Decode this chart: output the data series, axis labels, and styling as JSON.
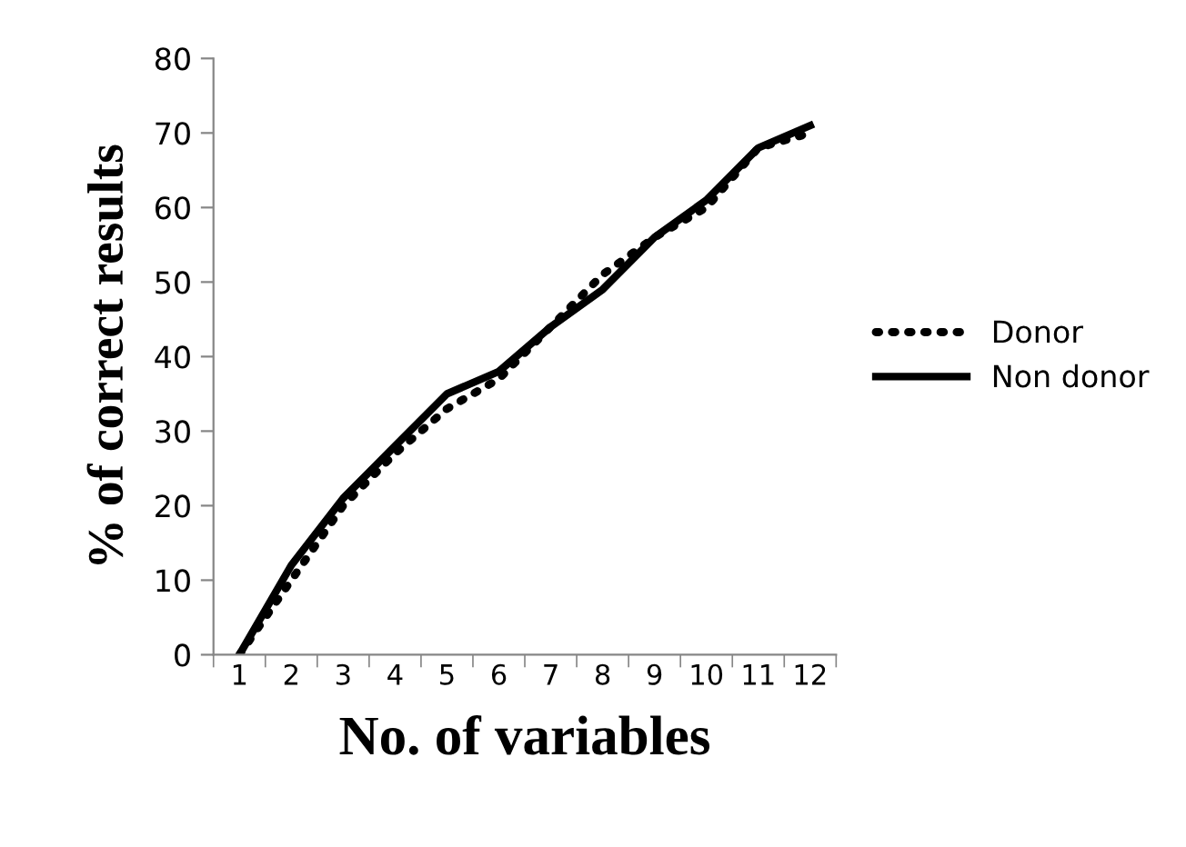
{
  "chart_data": {
    "type": "line",
    "xlabel": "No. of variables",
    "ylabel": "% of correct results",
    "categories": [
      "1",
      "2",
      "3",
      "4",
      "5",
      "6",
      "7",
      "8",
      "9",
      "10",
      "11",
      "12"
    ],
    "series": [
      {
        "name": "Donor",
        "color": "#000000",
        "line_style": "dotted",
        "values": [
          0,
          10,
          20,
          27,
          33,
          37,
          44,
          51,
          56,
          60,
          68,
          70
        ]
      },
      {
        "name": "Non donor",
        "color": "#000000",
        "line_style": "solid",
        "values": [
          0,
          12,
          21,
          28,
          35,
          38,
          44,
          49,
          56,
          61,
          68,
          71
        ]
      }
    ],
    "ylim": [
      0,
      80
    ],
    "yticks": [
      0,
      10,
      20,
      30,
      40,
      50,
      60,
      70,
      80
    ],
    "grid": false,
    "legend": "right",
    "marker": "none"
  }
}
